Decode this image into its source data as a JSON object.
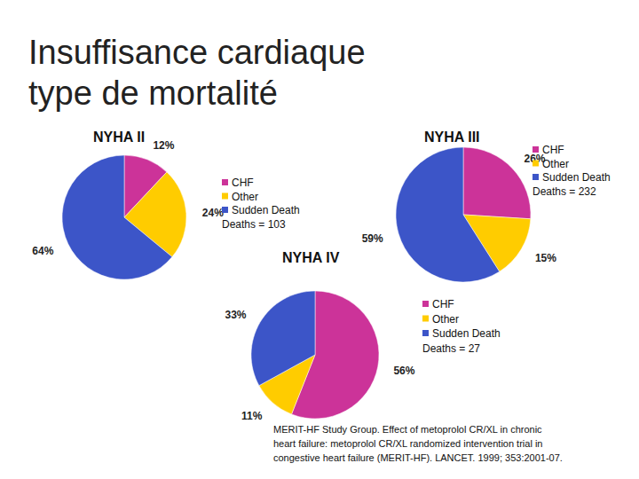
{
  "heading": [
    "Insuffisance cardiaque",
    "type de mortalité"
  ],
  "source": [
    "MERIT-HF Study Group.  Effect of metoprolol CR/XL in chronic",
    "heart failure: metoprolol CR/XL randomized intervention trial in",
    "congestive heart failure (MERIT-HF).   LANCET. 1999; 353:2001-07."
  ],
  "chart_data": [
    {
      "type": "pie",
      "title": "NYHA II",
      "categories": [
        "CHF",
        "Other",
        "Sudden Death"
      ],
      "values": [
        12,
        24,
        64
      ],
      "value_labels": [
        "12%",
        "24%",
        "64%"
      ],
      "colors": [
        "#cc3399",
        "#ffcc00",
        "#3c55c8"
      ],
      "data_labels": true,
      "legend": "right",
      "annotation": "Deaths = 103"
    },
    {
      "type": "pie",
      "title": "NYHA III",
      "categories": [
        "CHF",
        "Other",
        "Sudden Death"
      ],
      "values": [
        26,
        15,
        59
      ],
      "value_labels": [
        "26%",
        "15%",
        "59%"
      ],
      "colors": [
        "#cc3399",
        "#ffcc00",
        "#3c55c8"
      ],
      "data_labels": true,
      "legend": "right",
      "annotation": "Deaths = 232"
    },
    {
      "type": "pie",
      "title": "NYHA IV",
      "categories": [
        "CHF",
        "Other",
        "Sudden Death"
      ],
      "values": [
        56,
        11,
        33
      ],
      "value_labels": [
        "56%",
        "11%",
        "33%"
      ],
      "colors": [
        "#cc3399",
        "#ffcc00",
        "#3c55c8"
      ],
      "data_labels": true,
      "legend": "right",
      "annotation": "Deaths = 27"
    }
  ]
}
